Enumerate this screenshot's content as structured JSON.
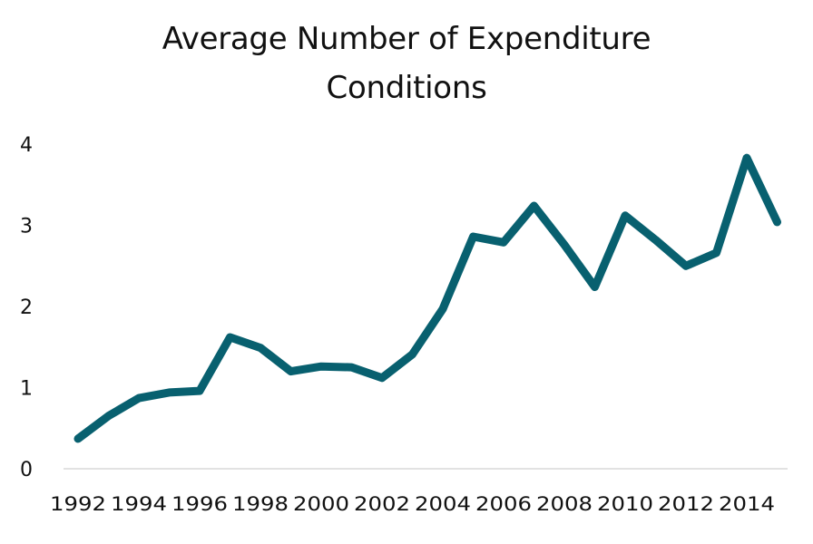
{
  "chart_data": {
    "type": "line",
    "title": [
      "Average Number of Expenditure",
      "Conditions"
    ],
    "xlabel": "",
    "ylabel": "",
    "ylim": [
      0,
      4
    ],
    "y_ticks": [
      "0",
      "1",
      "2",
      "3",
      "4"
    ],
    "x_tick_labels": [
      "1992",
      "1994",
      "1996",
      "1998",
      "2000",
      "2002",
      "2004",
      "2006",
      "2008",
      "2010",
      "2012",
      "2014"
    ],
    "grid": false,
    "legend": "none",
    "series": [
      {
        "color": "#08606f",
        "x": [
          1992,
          1993,
          1994,
          1995,
          1996,
          1997,
          1998,
          1999,
          2000,
          2001,
          2002,
          2003,
          2004,
          2005,
          2006,
          2007,
          2008,
          2009,
          2010,
          2011,
          2012,
          2013,
          2014,
          2015
        ],
        "values": [
          0.37,
          0.65,
          0.87,
          0.94,
          0.96,
          1.62,
          1.49,
          1.2,
          1.26,
          1.25,
          1.12,
          1.41,
          1.97,
          2.86,
          2.79,
          3.24,
          2.76,
          2.24,
          3.12,
          2.82,
          2.5,
          2.66,
          3.83,
          3.04
        ]
      }
    ]
  }
}
